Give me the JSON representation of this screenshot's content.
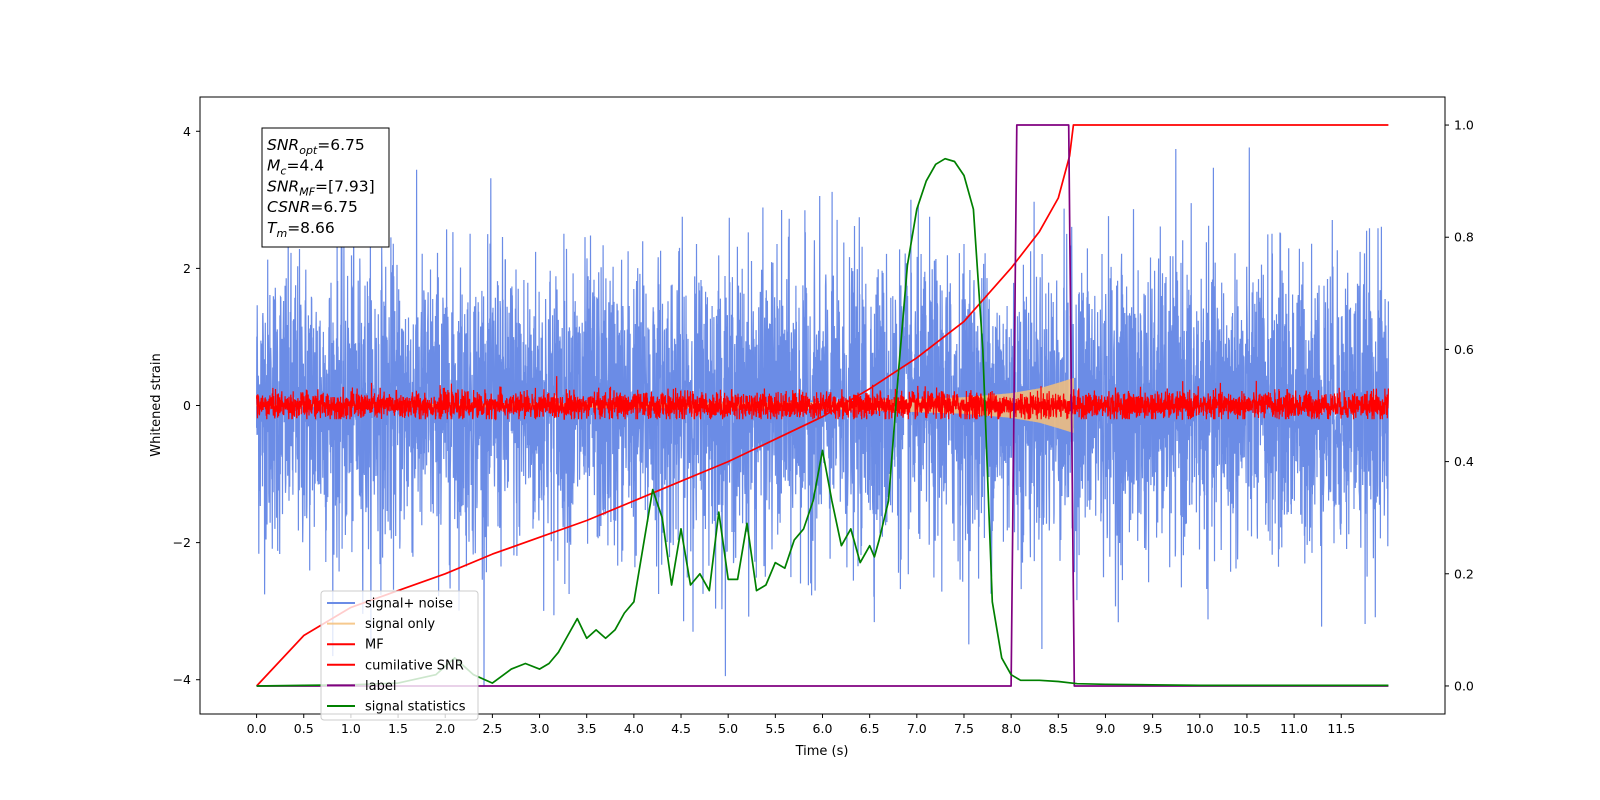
{
  "chart_data": {
    "type": "line",
    "xlabel": "Time (s)",
    "ylabel": "Whitened strain",
    "xlim": [
      -0.6,
      12.6
    ],
    "ylim_left": [
      -4.5,
      4.5
    ],
    "ylim_right": [
      -0.05,
      1.05
    ],
    "x_ticks": [
      0.0,
      0.5,
      1.0,
      1.5,
      2.0,
      2.5,
      3.0,
      3.5,
      4.0,
      4.5,
      5.0,
      5.5,
      6.0,
      6.5,
      7.0,
      7.5,
      8.0,
      8.5,
      9.0,
      9.5,
      10.0,
      10.5,
      11.0,
      11.5
    ],
    "x_tick_labels": [
      "0.0",
      "0.5",
      "1.0",
      "1.5",
      "2.0",
      "2.5",
      "3.0",
      "3.5",
      "4.0",
      "4.5",
      "5.0",
      "5.5",
      "6.0",
      "6.5",
      "7.0",
      "7.5",
      "8.0",
      "8.5",
      "9.0",
      "9.5",
      "10.0",
      "10.5",
      "11.0",
      "11.5"
    ],
    "y_left_ticks": [
      -4,
      -2,
      0,
      2,
      4
    ],
    "y_left_tick_labels": [
      "−4",
      "−2",
      "0",
      "2",
      "4"
    ],
    "y_right_ticks": [
      0.0,
      0.2,
      0.4,
      0.6,
      0.8,
      1.0
    ],
    "y_right_tick_labels": [
      "0.0",
      "0.2",
      "0.4",
      "0.6",
      "0.8",
      "1.0"
    ],
    "grid": false,
    "legend_placement": "lower-left",
    "series": [
      {
        "name": "signal+ noise",
        "axis": "left",
        "color": "#6b8ce6",
        "kind": "noise",
        "time_range": [
          0,
          12.0
        ],
        "envelope": {
          "min": -4.1,
          "max": 3.9,
          "typical_low": -2.3,
          "typical_high": 2.4
        }
      },
      {
        "name": "signal only",
        "axis": "left",
        "color": "#f5c07a",
        "kind": "chirp",
        "time_range": [
          0,
          8.66
        ],
        "amplitude_points": [
          [
            0,
            0.01
          ],
          [
            6.0,
            0.05
          ],
          [
            7.5,
            0.12
          ],
          [
            8.0,
            0.18
          ],
          [
            8.3,
            0.25
          ],
          [
            8.5,
            0.33
          ],
          [
            8.66,
            0.4
          ]
        ]
      },
      {
        "name": "MF",
        "axis": "left",
        "color": "#ff0000",
        "kind": "noise",
        "time_range": [
          0,
          12.0
        ],
        "envelope": {
          "min": -0.2,
          "max": 0.5,
          "typical_low": -0.12,
          "typical_high": 0.2
        }
      },
      {
        "name": "cumilative SNR",
        "axis": "right",
        "color": "#ff0000",
        "x": [
          0.0,
          0.5,
          1.0,
          1.5,
          2.0,
          2.5,
          3.0,
          3.5,
          4.0,
          4.5,
          5.0,
          5.5,
          6.0,
          6.5,
          7.0,
          7.5,
          8.0,
          8.3,
          8.5,
          8.62,
          8.66,
          9.0,
          10.0,
          11.0,
          12.0
        ],
        "y": [
          0.0,
          0.09,
          0.14,
          0.17,
          0.2,
          0.235,
          0.265,
          0.295,
          0.33,
          0.365,
          0.4,
          0.44,
          0.48,
          0.53,
          0.585,
          0.65,
          0.745,
          0.81,
          0.87,
          0.945,
          1.0,
          1.0,
          1.0,
          1.0,
          1.0
        ]
      },
      {
        "name": "label",
        "axis": "right",
        "color": "#800080",
        "x": [
          0.0,
          8.0,
          8.06,
          8.61,
          8.67,
          12.0
        ],
        "y": [
          0.0,
          0.0,
          1.0,
          1.0,
          0.0,
          0.0
        ]
      },
      {
        "name": "signal statistics",
        "axis": "right",
        "color": "#008000",
        "x": [
          0.0,
          0.5,
          1.0,
          1.5,
          1.9,
          2.1,
          2.3,
          2.5,
          2.7,
          2.85,
          3.0,
          3.1,
          3.2,
          3.3,
          3.4,
          3.5,
          3.6,
          3.7,
          3.8,
          3.9,
          4.0,
          4.1,
          4.2,
          4.3,
          4.4,
          4.5,
          4.6,
          4.7,
          4.8,
          4.9,
          5.0,
          5.1,
          5.2,
          5.3,
          5.4,
          5.5,
          5.6,
          5.7,
          5.8,
          5.9,
          6.0,
          6.1,
          6.2,
          6.3,
          6.4,
          6.5,
          6.55,
          6.6,
          6.7,
          6.8,
          6.9,
          7.0,
          7.1,
          7.2,
          7.3,
          7.4,
          7.5,
          7.6,
          7.7,
          7.8,
          7.9,
          8.0,
          8.1,
          8.3,
          8.5,
          8.7,
          9.0,
          9.5,
          10.0,
          11.0,
          12.0
        ],
        "y": [
          0.0,
          0.001,
          0.002,
          0.005,
          0.02,
          0.05,
          0.02,
          0.005,
          0.03,
          0.04,
          0.03,
          0.04,
          0.06,
          0.09,
          0.12,
          0.085,
          0.1,
          0.085,
          0.1,
          0.13,
          0.15,
          0.25,
          0.35,
          0.3,
          0.18,
          0.28,
          0.18,
          0.2,
          0.17,
          0.31,
          0.19,
          0.19,
          0.29,
          0.17,
          0.18,
          0.22,
          0.21,
          0.26,
          0.28,
          0.33,
          0.42,
          0.33,
          0.25,
          0.28,
          0.22,
          0.25,
          0.23,
          0.26,
          0.33,
          0.55,
          0.75,
          0.85,
          0.9,
          0.93,
          0.94,
          0.935,
          0.91,
          0.85,
          0.6,
          0.15,
          0.05,
          0.02,
          0.01,
          0.01,
          0.008,
          0.004,
          0.003,
          0.002,
          0.001,
          0.001,
          0.001
        ]
      }
    ],
    "annotation": {
      "lines": [
        {
          "main": "SNR",
          "sub": "opt",
          "value": "=6.75"
        },
        {
          "main": "M",
          "sub": "c",
          "value": "=4.4"
        },
        {
          "main": "SNR",
          "sub": "MF",
          "value": "=[7.93]"
        },
        {
          "main": "CSNR",
          "sub": "",
          "value": "=6.75"
        },
        {
          "main": "T",
          "sub": "m",
          "value": "=8.66"
        }
      ]
    }
  }
}
